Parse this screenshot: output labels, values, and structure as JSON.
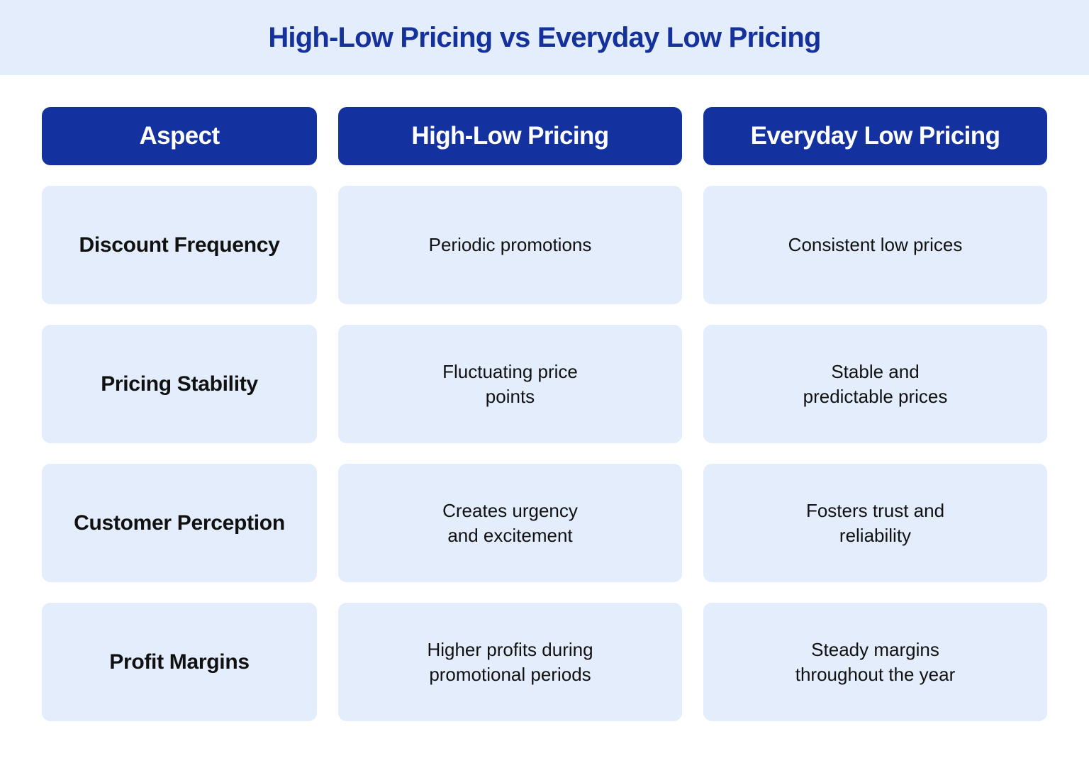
{
  "title": "High-Low Pricing vs Everyday Low Pricing",
  "colors": {
    "banner_bg": "#e3edfb",
    "title_text": "#14319c",
    "header_bg": "#13319f",
    "header_text": "#ffffff",
    "cell_bg": "#e3edfb",
    "cell_text": "#111111"
  },
  "headers": [
    "Aspect",
    "High-Low Pricing",
    "Everyday Low Pricing"
  ],
  "rows": [
    {
      "aspect": "Discount Frequency",
      "high_low": "Periodic promotions",
      "everyday_low": "Consistent low prices"
    },
    {
      "aspect": "Pricing Stability",
      "high_low": "Fluctuating price\npoints",
      "everyday_low": "Stable and\npredictable prices"
    },
    {
      "aspect": "Customer Perception",
      "high_low": "Creates urgency\nand excitement",
      "everyday_low": "Fosters trust and\nreliability"
    },
    {
      "aspect": "Profit Margins",
      "high_low": "Higher profits during\npromotional periods",
      "everyday_low": "Steady margins\nthroughout the year"
    }
  ]
}
